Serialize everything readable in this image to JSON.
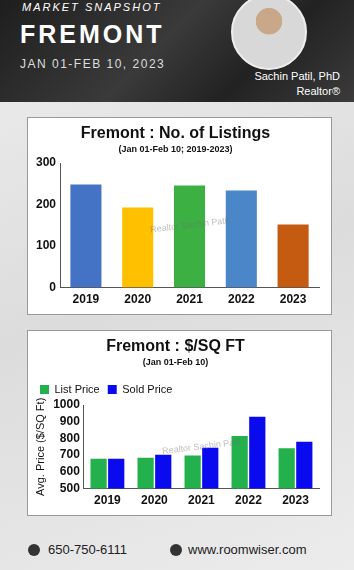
{
  "header": {
    "kicker": "MARKET SNAPSHOT",
    "city": "FREMONT",
    "period": "JAN 01-FEB 10, 2023",
    "agent": "Sachin Patil, PhD",
    "role": "Realtor®"
  },
  "footer": {
    "phone": "650-750-6111",
    "website": "www.roomwiser.com"
  },
  "chart_data": [
    {
      "type": "bar",
      "title": "Fremont : No. of Listings",
      "subtitle": "(Jan 01-Feb 10; 2019-2023)",
      "categories": [
        "2019",
        "2020",
        "2021",
        "2022",
        "2023"
      ],
      "values": [
        248,
        193,
        246,
        234,
        152
      ],
      "colors": [
        "#4472c4",
        "#ffc000",
        "#3cb043",
        "#4a86c8",
        "#c55a11"
      ],
      "ylim": [
        0,
        300
      ],
      "yticks": [
        0,
        100,
        200,
        300
      ],
      "grid": false,
      "annotations": [
        "Realtor Sachin Patil"
      ]
    },
    {
      "type": "bar",
      "title": "Fremont : $/SQ FT",
      "subtitle": "(Jan 01-Feb 10)",
      "ylabel": "Avg. Price ($/SQ Ft)",
      "categories": [
        "2019",
        "2020",
        "2021",
        "2022",
        "2023"
      ],
      "series": [
        {
          "name": "List Price",
          "color": "#22b14c",
          "values": [
            678,
            685,
            698,
            815,
            742
          ]
        },
        {
          "name": "Sold Price",
          "color": "#0a0aee",
          "values": [
            678,
            703,
            745,
            930,
            780
          ]
        }
      ],
      "ylim": [
        500,
        1000
      ],
      "yticks": [
        500,
        600,
        700,
        800,
        900,
        1000
      ],
      "grid": false,
      "legend": "upper left",
      "annotations": [
        "Realtor Sachin Patil"
      ]
    }
  ]
}
